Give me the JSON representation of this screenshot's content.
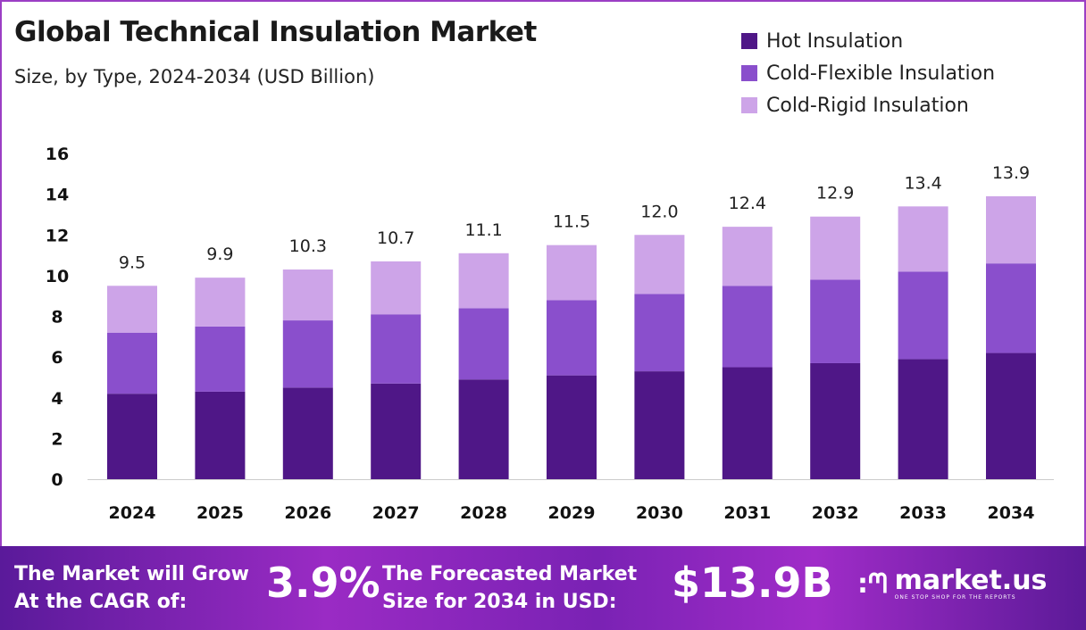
{
  "chart_data": {
    "type": "bar",
    "stacked": true,
    "title": "Global Technical Insulation Market",
    "subtitle": "Size, by Type, 2024-2034 (USD Billion)",
    "categories": [
      "2024",
      "2025",
      "2026",
      "2027",
      "2028",
      "2029",
      "2030",
      "2031",
      "2032",
      "2033",
      "2034"
    ],
    "series": [
      {
        "name": "Hot Insulation",
        "color": "#4f1787",
        "values": [
          4.2,
          4.3,
          4.5,
          4.7,
          4.9,
          5.1,
          5.3,
          5.5,
          5.7,
          5.9,
          6.2
        ]
      },
      {
        "name": "Cold-Flexible Insulation",
        "color": "#8a4fcc",
        "values": [
          3.0,
          3.2,
          3.3,
          3.4,
          3.5,
          3.7,
          3.8,
          4.0,
          4.1,
          4.3,
          4.4
        ]
      },
      {
        "name": "Cold-Rigid Insulation",
        "color": "#cda4e8",
        "values": [
          2.3,
          2.4,
          2.5,
          2.6,
          2.7,
          2.7,
          2.9,
          2.9,
          3.1,
          3.2,
          3.3
        ]
      }
    ],
    "totals": [
      "9.5",
      "9.9",
      "10.3",
      "10.7",
      "11.1",
      "11.5",
      "12.0",
      "12.4",
      "12.9",
      "13.4",
      "13.9"
    ],
    "yticks": [
      "0",
      "2",
      "4",
      "6",
      "8",
      "10",
      "12",
      "14",
      "16"
    ],
    "ylim": [
      0,
      16
    ],
    "grid": false,
    "legend": "top-right",
    "xlabel": "",
    "ylabel": ""
  },
  "footer": {
    "cagr_label": "The Market will Grow At the CAGR of:",
    "cagr_value": "3.9%",
    "forecast_label": "The Forecasted Market Size for 2034 in USD:",
    "forecast_value": "$13.9B",
    "brand": "market.us",
    "tagline": "ONE STOP SHOP FOR THE REPORTS"
  }
}
